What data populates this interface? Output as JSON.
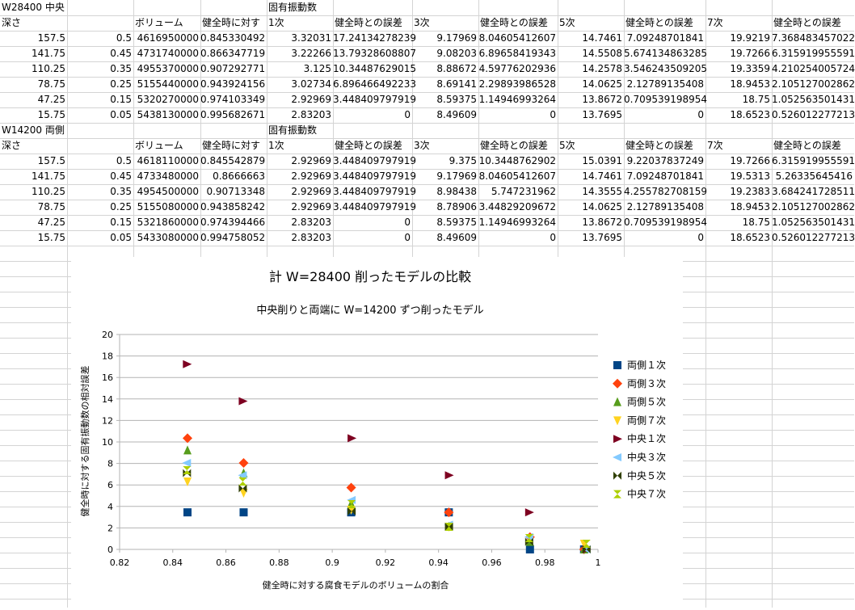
{
  "table1": {
    "title": "W28400 中央",
    "headers": [
      "深さ",
      "",
      "ボリューム",
      "健全時に対す",
      "固有振動数",
      "",
      "",
      "",
      "",
      "",
      "",
      ""
    ],
    "headers_row2": [
      "深さ",
      "",
      "ボリューム",
      "健全時に対す",
      "1次",
      "健全時との誤差",
      "3次",
      "健全時との誤差",
      "5次",
      "健全時との誤差",
      "7次",
      "健全時との誤差"
    ],
    "rows": [
      [
        "157.5",
        "0.5",
        "4616950000",
        "0.845330492",
        "3.32031",
        "17.24134278239",
        "9.17969",
        "8.04605412607",
        "14.7461",
        "7.09248701841",
        "19.9219",
        "7.368483457022"
      ],
      [
        "141.75",
        "0.45",
        "4731740000",
        "0.866347719",
        "3.22266",
        "13.79328608807",
        "9.08203",
        "6.89658419343",
        "14.5508",
        "5.674134863285",
        "19.7266",
        "6.315919955591"
      ],
      [
        "110.25",
        "0.35",
        "4955370000",
        "0.907292771",
        "3.125",
        "10.34487629015",
        "8.88672",
        "4.59776202936",
        "14.2578",
        "3.546243509205",
        "19.3359",
        "4.210254005724"
      ],
      [
        "78.75",
        "0.25",
        "5155440000",
        "0.943924156",
        "3.02734",
        "6.896466492233",
        "8.69141",
        "2.29893986528",
        "14.0625",
        "2.12789135408",
        "18.9453",
        "2.105127002862"
      ],
      [
        "47.25",
        "0.15",
        "5320270000",
        "0.974103349",
        "2.92969",
        "3.448409797919",
        "8.59375",
        "1.14946993264",
        "13.8672",
        "0.709539198954",
        "18.75",
        "1.052563501431"
      ],
      [
        "15.75",
        "0.05",
        "5438130000",
        "0.995682671",
        "2.83203",
        "0",
        "8.49609",
        "0",
        "13.7695",
        "0",
        "18.6523",
        "0.526012277213"
      ]
    ]
  },
  "table2": {
    "title": "W14200 両側",
    "header_group": "固有振動数",
    "headers": [
      "深さ",
      "",
      "ボリューム",
      "健全時に対す",
      "1次",
      "健全時との誤差",
      "3次",
      "健全時との誤差",
      "5次",
      "健全時との誤差",
      "7次",
      "健全時との誤差"
    ],
    "rows": [
      [
        "157.5",
        "0.5",
        "4618110000",
        "0.845542879",
        "2.92969",
        "3.448409797919",
        "9.375",
        "10.3448762902",
        "15.0391",
        "9.22037837249",
        "19.7266",
        "6.315919955591"
      ],
      [
        "141.75",
        "0.45",
        "4733480000",
        "0.8666663",
        "2.92969",
        "3.448409797919",
        "9.17969",
        "8.04605412607",
        "14.7461",
        "7.09248701841",
        "19.5313",
        "5.26335645416"
      ],
      [
        "110.25",
        "0.35",
        "4954500000",
        "0.90713348",
        "2.92969",
        "3.448409797919",
        "8.98438",
        "5.747231962",
        "14.3555",
        "4.255782708159",
        "19.2383",
        "3.684241728511"
      ],
      [
        "78.75",
        "0.25",
        "5155080000",
        "0.943858242",
        "2.92969",
        "3.448409797919",
        "8.78906",
        "3.44829209672",
        "14.0625",
        "2.12789135408",
        "18.9453",
        "2.105127002862"
      ],
      [
        "47.25",
        "0.15",
        "5321860000",
        "0.974394466",
        "2.83203",
        "0",
        "8.59375",
        "1.14946993264",
        "13.8672",
        "0.709539198954",
        "18.75",
        "1.052563501431"
      ],
      [
        "15.75",
        "0.05",
        "5433080000",
        "0.994758052",
        "2.83203",
        "0",
        "8.49609",
        "0",
        "13.7695",
        "0",
        "18.6523",
        "0.526012277213"
      ]
    ]
  },
  "chart_data": {
    "type": "scatter",
    "title": "計 W=28400 削ったモデルの比較",
    "subtitle": "中央削りと両端に W=14200 ずつ削ったモデル",
    "xlabel": "健全時に対する腐食モデルのボリュームの割合",
    "ylabel": "健全時に対する固有振動数の相対誤差",
    "xlim": [
      0.82,
      1
    ],
    "ylim": [
      0,
      20
    ],
    "xticks": [
      "0.82",
      "0.84",
      "0.86",
      "0.88",
      "0.9",
      "0.92",
      "0.94",
      "0.96",
      "0.98",
      "1"
    ],
    "yticks": [
      "0",
      "2",
      "4",
      "6",
      "8",
      "10",
      "12",
      "14",
      "16",
      "18",
      "20"
    ],
    "legend_position": "right",
    "series": [
      {
        "name": "両側１次",
        "marker": "square",
        "color": "#004586",
        "x": [
          0.845542879,
          0.8666663,
          0.90713348,
          0.943858242,
          0.974394466,
          0.994758052
        ],
        "y": [
          3.448409797919,
          3.448409797919,
          3.448409797919,
          3.448409797919,
          0,
          0
        ]
      },
      {
        "name": "両側３次",
        "marker": "diamond",
        "color": "#ff420e",
        "x": [
          0.845542879,
          0.8666663,
          0.90713348,
          0.943858242,
          0.974394466,
          0.994758052
        ],
        "y": [
          10.3448762902,
          8.04605412607,
          5.747231962,
          3.44829209672,
          1.14946993264,
          0
        ]
      },
      {
        "name": "両側５次",
        "marker": "triangle-up",
        "color": "#579d1c",
        "x": [
          0.845542879,
          0.8666663,
          0.90713348,
          0.943858242,
          0.974394466,
          0.994758052
        ],
        "y": [
          9.22037837249,
          7.09248701841,
          4.255782708159,
          2.12789135408,
          0.709539198954,
          0
        ]
      },
      {
        "name": "両側７次",
        "marker": "triangle-down",
        "color": "#ffd320",
        "x": [
          0.845542879,
          0.8666663,
          0.90713348,
          0.943858242,
          0.974394466,
          0.994758052
        ],
        "y": [
          6.315919955591,
          5.26335645416,
          3.684241728511,
          2.105127002862,
          1.052563501431,
          0.526012277213
        ]
      },
      {
        "name": "中央１次",
        "marker": "triangle-right",
        "color": "#7e0021",
        "x": [
          0.845330492,
          0.866347719,
          0.907292771,
          0.943924156,
          0.974103349,
          0.995682671
        ],
        "y": [
          17.24134278239,
          13.79328608807,
          10.34487629015,
          6.896466492233,
          3.448409797919,
          0
        ]
      },
      {
        "name": "中央３次",
        "marker": "triangle-left",
        "color": "#83caff",
        "x": [
          0.845330492,
          0.866347719,
          0.907292771,
          0.943924156,
          0.974103349,
          0.995682671
        ],
        "y": [
          8.04605412607,
          6.89658419343,
          4.59776202936,
          2.29893986528,
          1.14946993264,
          0
        ]
      },
      {
        "name": "中央５次",
        "marker": "bowtie",
        "color": "#314004",
        "x": [
          0.845330492,
          0.866347719,
          0.907292771,
          0.943924156,
          0.974103349,
          0.995682671
        ],
        "y": [
          7.09248701841,
          5.674134863285,
          3.546243509205,
          2.12789135408,
          0.709539198954,
          0
        ]
      },
      {
        "name": "中央７次",
        "marker": "hourglass",
        "color": "#aecf00",
        "x": [
          0.845330492,
          0.866347719,
          0.907292771,
          0.943924156,
          0.974103349,
          0.995682671
        ],
        "y": [
          7.368483457022,
          6.315919955591,
          4.210254005724,
          2.105127002862,
          1.052563501431,
          0.526012277213
        ]
      }
    ]
  }
}
